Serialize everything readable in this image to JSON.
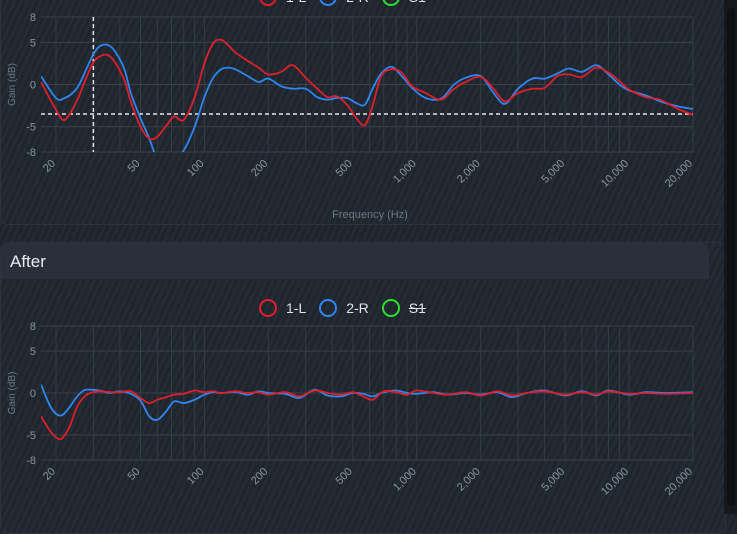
{
  "colors": {
    "series_1": "#e01f2a",
    "series_2": "#2f86f0",
    "series_3": "#2be02b"
  },
  "legend": [
    {
      "label": "1-L",
      "color": "#e01f2a",
      "active": true
    },
    {
      "label": "2-R",
      "color": "#2f86f0",
      "active": true
    },
    {
      "label": "S1",
      "color": "#2be02b",
      "active": false
    }
  ],
  "before": {
    "y_axis_label": "Gain (dB)",
    "x_axis_label": "Frequency (Hz)"
  },
  "after": {
    "title": "After",
    "y_axis_label": "Gain (dB)"
  },
  "chart_data": [
    {
      "type": "line",
      "xscale": "log",
      "xlim": [
        17,
        20000
      ],
      "ylim": [
        -8,
        8
      ],
      "yticks": [
        "8",
        "5",
        "0",
        "-5",
        "-8"
      ],
      "xticks": [
        "20",
        "50",
        "100",
        "200",
        "500",
        "1,000",
        "2,000",
        "5,000",
        "10,000",
        "20,000"
      ],
      "xlabel": "Frequency (Hz)",
      "ylabel": "Gain (dB)",
      "crosshair": {
        "x": 30,
        "y": -3.5
      },
      "series": [
        {
          "name": "1-L",
          "color": "#e01f2a",
          "x": [
            17,
            20,
            22,
            25,
            28,
            30,
            32,
            35,
            38,
            42,
            45,
            50,
            55,
            60,
            66,
            72,
            80,
            90,
            100,
            110,
            120,
            130,
            140,
            160,
            180,
            200,
            230,
            260,
            300,
            340,
            380,
            420,
            470,
            520,
            570,
            620,
            680,
            760,
            850,
            950,
            1100,
            1300,
            1500,
            1700,
            2000,
            2300,
            2600,
            3000,
            3500,
            4000,
            4600,
            5200,
            6000,
            7000,
            8000,
            9000,
            10000,
            12000,
            14000,
            17000,
            20000
          ],
          "y": [
            0.3,
            -3.0,
            -4.2,
            -2.0,
            1.0,
            2.6,
            3.3,
            3.5,
            2.6,
            0.5,
            -2.0,
            -5.0,
            -6.4,
            -6.2,
            -4.9,
            -3.8,
            -4.2,
            -1.5,
            2.5,
            4.9,
            5.3,
            4.6,
            3.8,
            2.8,
            2.0,
            1.2,
            1.5,
            2.3,
            0.8,
            -0.5,
            -1.5,
            -1.4,
            -2.4,
            -4.0,
            -4.8,
            -2.5,
            1.0,
            1.8,
            1.4,
            -0.2,
            -1.0,
            -1.8,
            -0.5,
            0.3,
            0.9,
            -0.5,
            -2.0,
            -1.0,
            -0.5,
            -0.4,
            1.0,
            1.2,
            0.9,
            2.0,
            1.4,
            0.4,
            -0.6,
            -1.5,
            -1.8,
            -2.9,
            -3.6
          ]
        },
        {
          "name": "2-R",
          "color": "#2f86f0",
          "x": [
            17,
            20,
            22,
            25,
            28,
            30,
            32,
            35,
            38,
            42,
            45,
            50,
            55,
            60,
            66,
            72,
            80,
            90,
            100,
            110,
            120,
            130,
            140,
            160,
            180,
            200,
            230,
            260,
            300,
            340,
            380,
            420,
            470,
            520,
            570,
            620,
            680,
            760,
            850,
            950,
            1100,
            1300,
            1500,
            1700,
            2000,
            2300,
            2600,
            3000,
            3500,
            4000,
            4600,
            5200,
            6000,
            7000,
            8000,
            9000,
            10000,
            12000,
            14000,
            17000,
            20000
          ],
          "y": [
            1.0,
            -1.6,
            -1.6,
            -0.5,
            2.0,
            3.6,
            4.5,
            4.7,
            3.9,
            1.8,
            -1.0,
            -4.0,
            -6.4,
            -9.0,
            -10.5,
            -8.8,
            -7.8,
            -5.0,
            -1.5,
            0.8,
            1.8,
            2.0,
            1.8,
            1.0,
            0.3,
            0.7,
            -0.2,
            -0.5,
            -0.5,
            -1.5,
            -1.8,
            -1.6,
            -1.6,
            -2.2,
            -2.4,
            -0.5,
            1.3,
            2.1,
            1.0,
            -0.4,
            -1.6,
            -1.7,
            0.0,
            0.8,
            1.0,
            -1.0,
            -2.3,
            -0.5,
            0.7,
            0.7,
            1.3,
            1.9,
            1.5,
            2.3,
            1.2,
            0.0,
            -0.7,
            -1.3,
            -2.0,
            -2.6,
            -2.9
          ]
        }
      ]
    },
    {
      "type": "line",
      "xscale": "log",
      "xlim": [
        17,
        20000
      ],
      "ylim": [
        -8,
        8
      ],
      "yticks": [
        "8",
        "5",
        "0",
        "-5",
        "-8"
      ],
      "xticks": [
        "20",
        "50",
        "100",
        "200",
        "500",
        "1,000",
        "2,000",
        "5,000",
        "10,000",
        "20,000"
      ],
      "ylabel": "Gain (dB)",
      "series": [
        {
          "name": "1-L",
          "color": "#e01f2a",
          "x": [
            17,
            19,
            21,
            23,
            25,
            27,
            29,
            32,
            36,
            40,
            45,
            50,
            55,
            60,
            66,
            72,
            80,
            90,
            100,
            110,
            120,
            140,
            160,
            180,
            200,
            240,
            280,
            330,
            380,
            440,
            500,
            560,
            620,
            700,
            800,
            900,
            1000,
            1200,
            1400,
            1700,
            2000,
            2400,
            2800,
            3300,
            4000,
            5000,
            6000,
            7000,
            8000,
            10000,
            12000,
            15000,
            20000
          ],
          "y": [
            -2.8,
            -4.7,
            -5.5,
            -4.2,
            -1.8,
            -0.5,
            0.0,
            0.2,
            0.1,
            0.1,
            0.2,
            -0.6,
            -1.2,
            -0.8,
            -0.5,
            -0.2,
            -0.1,
            0.3,
            0.1,
            0.2,
            0.0,
            0.2,
            0.0,
            0.1,
            -0.2,
            0.1,
            -0.4,
            0.3,
            0.0,
            -0.2,
            0.1,
            -0.4,
            -0.8,
            0.2,
            0.1,
            -0.2,
            0.3,
            0.0,
            -0.2,
            0.1,
            -0.3,
            0.2,
            -0.3,
            0.0,
            0.2,
            -0.2,
            0.1,
            -0.2,
            0.2,
            -0.1,
            0.0,
            -0.1,
            0.0
          ]
        },
        {
          "name": "2-R",
          "color": "#2f86f0",
          "x": [
            17,
            19,
            21,
            23,
            25,
            27,
            29,
            32,
            36,
            40,
            45,
            50,
            55,
            60,
            66,
            72,
            80,
            90,
            100,
            110,
            120,
            140,
            160,
            180,
            200,
            240,
            280,
            330,
            380,
            440,
            500,
            560,
            620,
            700,
            800,
            900,
            1000,
            1200,
            1400,
            1700,
            2000,
            2400,
            2800,
            3300,
            4000,
            5000,
            6000,
            7000,
            8000,
            10000,
            12000,
            15000,
            20000
          ],
          "y": [
            1.0,
            -1.8,
            -2.7,
            -1.8,
            -0.5,
            0.3,
            0.4,
            0.3,
            0.0,
            0.2,
            -0.1,
            -0.9,
            -2.8,
            -3.2,
            -2.2,
            -1.0,
            -1.2,
            -0.8,
            -0.2,
            0.1,
            0.0,
            0.1,
            -0.2,
            0.2,
            0.0,
            -0.1,
            -0.6,
            0.4,
            -0.3,
            -0.4,
            0.0,
            -0.1,
            -0.4,
            0.1,
            0.3,
            0.0,
            -0.1,
            0.1,
            -0.2,
            0.0,
            -0.2,
            0.1,
            -0.5,
            0.0,
            0.3,
            -0.3,
            0.2,
            -0.3,
            0.3,
            -0.2,
            0.1,
            0.0,
            0.1
          ]
        }
      ]
    }
  ]
}
